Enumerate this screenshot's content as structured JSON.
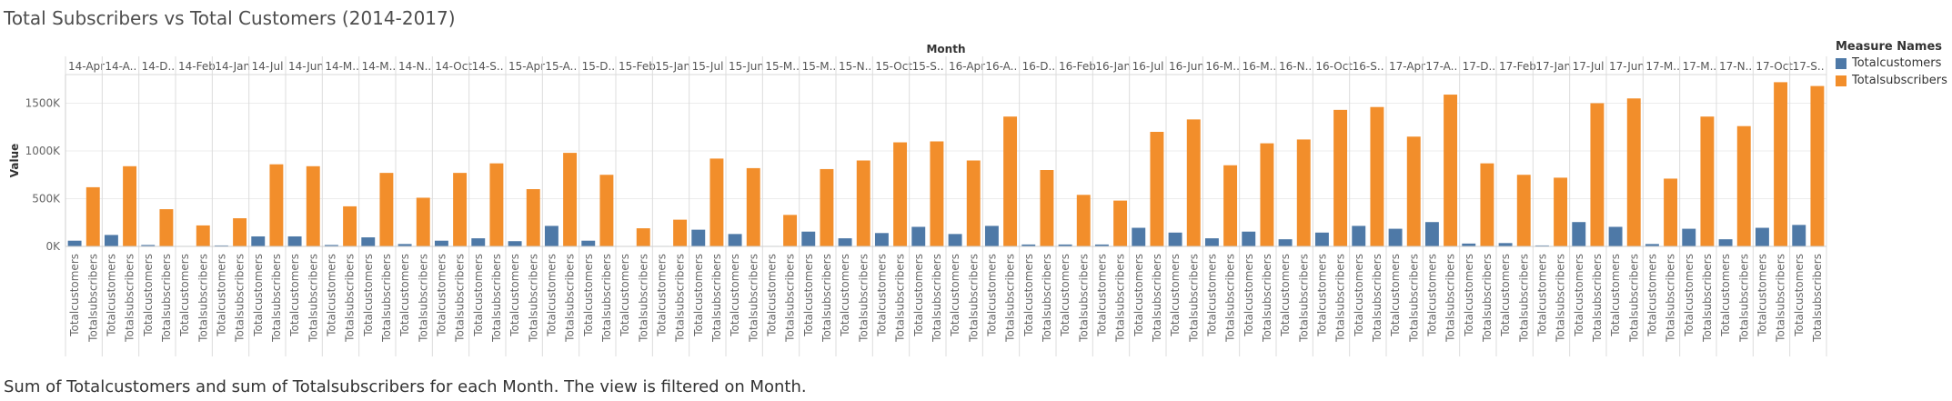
{
  "title": "Total Subscribers vs Total Customers (2014-2017)",
  "caption": "Sum of Totalcustomers and sum of Totalsubscribers for each Month. The view is filtered on Month.",
  "colors": {
    "Totalcustomers": "#4e79a7",
    "Totalsubscribers": "#f28e2b"
  },
  "chart_data": {
    "type": "bar",
    "title": "Total Subscribers vs Total Customers (2014-2017)",
    "xlabel": "Month",
    "ylabel": "Value",
    "ylim": [
      0,
      1800000
    ],
    "yticks": [
      0,
      500000,
      1000000,
      1500000
    ],
    "ytick_labels": [
      "0K",
      "500K",
      "1000K",
      "1500K"
    ],
    "grid": true,
    "legend_title": "Measure Names",
    "legend_position": "top-right",
    "categories": [
      "14-Apr",
      "14-A..",
      "14-D..",
      "14-Feb",
      "14-Jan",
      "14-Jul",
      "14-Jun",
      "14-M..",
      "14-M..",
      "14-N..",
      "14-Oct",
      "14-S..",
      "15-Apr",
      "15-A..",
      "15-D..",
      "15-Feb",
      "15-Jan",
      "15-Jul",
      "15-Jun",
      "15-M..",
      "15-M..",
      "15-N..",
      "15-Oct",
      "15-S..",
      "16-Apr",
      "16-A..",
      "16-D..",
      "16-Feb",
      "16-Jan",
      "16-Jul",
      "16-Jun",
      "16-M..",
      "16-M..",
      "16-N..",
      "16-Oct",
      "16-S..",
      "17-Apr",
      "17-A..",
      "17-D..",
      "17-Feb",
      "17-Jan",
      "17-Jul",
      "17-Jun",
      "17-M..",
      "17-M..",
      "17-N..",
      "17-Oct",
      "17-S.."
    ],
    "sub_categories": [
      "Totalcustomers",
      "Totalsubscribers"
    ],
    "series": [
      {
        "name": "Totalcustomers",
        "values": [
          60000,
          120000,
          15000,
          5000,
          10000,
          105000,
          105000,
          15000,
          95000,
          25000,
          60000,
          85000,
          55000,
          215000,
          60000,
          0,
          5000,
          175000,
          130000,
          5000,
          155000,
          85000,
          140000,
          205000,
          130000,
          215000,
          20000,
          20000,
          20000,
          195000,
          145000,
          85000,
          155000,
          75000,
          145000,
          215000,
          185000,
          255000,
          30000,
          35000,
          10000,
          255000,
          205000,
          25000,
          185000,
          75000,
          195000,
          225000
        ]
      },
      {
        "name": "Totalsubscribers",
        "values": [
          620000,
          840000,
          390000,
          220000,
          295000,
          860000,
          840000,
          420000,
          770000,
          510000,
          770000,
          870000,
          600000,
          980000,
          750000,
          190000,
          280000,
          920000,
          820000,
          330000,
          810000,
          900000,
          1090000,
          1100000,
          900000,
          1360000,
          800000,
          540000,
          480000,
          1200000,
          1330000,
          850000,
          1080000,
          1120000,
          1430000,
          1460000,
          1150000,
          1590000,
          870000,
          750000,
          720000,
          1500000,
          1550000,
          710000,
          1360000,
          1260000,
          1720000,
          1680000
        ]
      }
    ]
  }
}
